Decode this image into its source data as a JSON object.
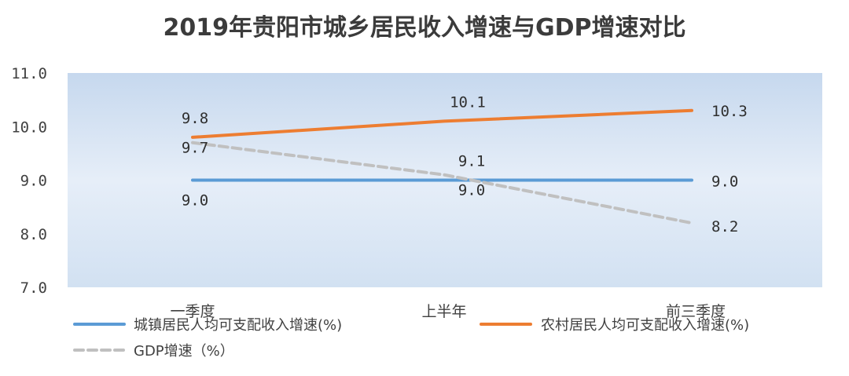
{
  "chart_data": {
    "type": "line",
    "title": "2019年贵阳市城乡居民收入增速与GDP增速对比",
    "categories": [
      "一季度",
      "上半年",
      "前三季度"
    ],
    "ylim": [
      7.0,
      11.0
    ],
    "yticks": [
      "7.0",
      "8.0",
      "9.0",
      "10.0",
      "11.0"
    ],
    "grid": false,
    "legend_position": "bottom",
    "series": [
      {
        "name": "城镇居民人均可支配收入增速(%)",
        "values": [
          9.0,
          9.0,
          9.0
        ],
        "labels": [
          "9.0",
          "",
          "9.0"
        ],
        "color": "#5b9bd5",
        "style": "solid"
      },
      {
        "name": "农村居民人均可支配收入增速(%)",
        "values": [
          9.8,
          10.1,
          10.3
        ],
        "labels": [
          "9.8",
          "10.1",
          "10.3"
        ],
        "color": "#ed7d31",
        "style": "solid"
      },
      {
        "name": "GDP增速（%）",
        "values": [
          9.7,
          9.1,
          8.2
        ],
        "labels": [
          "9.7",
          "9.1",
          "8.2"
        ],
        "color": "#c0c0c0",
        "style": "dashed"
      }
    ],
    "extra_labels": [
      {
        "category_index": 1,
        "text": "9.0"
      }
    ]
  }
}
